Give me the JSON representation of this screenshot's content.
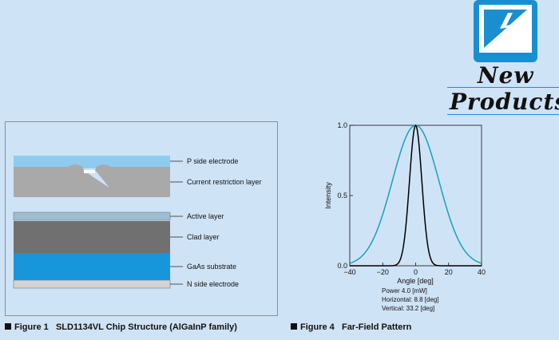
{
  "logo": {
    "line1": "New",
    "line2": "Products",
    "colors": {
      "accent": "#1a8fd0"
    }
  },
  "figure1": {
    "caption_prefix": "Figure 1",
    "caption_title": "SLD1134VL Chip Structure (AlGaInP family)",
    "layers": [
      {
        "label": "P side electrode",
        "color": "#8fcbef"
      },
      {
        "label": "Current restriction layer",
        "color": "#a9a9a9"
      },
      {
        "label": "Active layer",
        "color": "#9fbed2"
      },
      {
        "label": "Clad layer",
        "color": "#707070"
      },
      {
        "label": "GaAs substrate",
        "color": "#1896dc"
      },
      {
        "label": "N side electrode",
        "color": "#d4d4d4"
      }
    ]
  },
  "figure4": {
    "caption_prefix": "Figure 4",
    "caption_title": "Far-Field Pattern",
    "legend": {
      "power": "Power    4.0  [mW]",
      "horizontal": "Horizontal: 8.8 [deg]",
      "vertical": "Vertical: 33.2 [deg]"
    }
  },
  "chart_data": {
    "type": "line",
    "title": "Far-Field Pattern",
    "xlabel": "Angle [deg]",
    "ylabel": "Intensity",
    "xlim": [
      -40,
      40
    ],
    "ylim": [
      0,
      1.0
    ],
    "xticks": [
      -40,
      -20,
      0,
      20,
      40
    ],
    "yticks": [
      0.0,
      0.5,
      1.0
    ],
    "ytick_labels": [
      "0.0",
      "0.5",
      "1.0"
    ],
    "series": [
      {
        "name": "Vertical",
        "color": "#1aa0b8",
        "fwhm_deg": 33.2,
        "shape": "gaussian"
      },
      {
        "name": "Horizontal",
        "color": "#000000",
        "fwhm_deg": 8.8,
        "shape": "gaussian"
      }
    ]
  }
}
